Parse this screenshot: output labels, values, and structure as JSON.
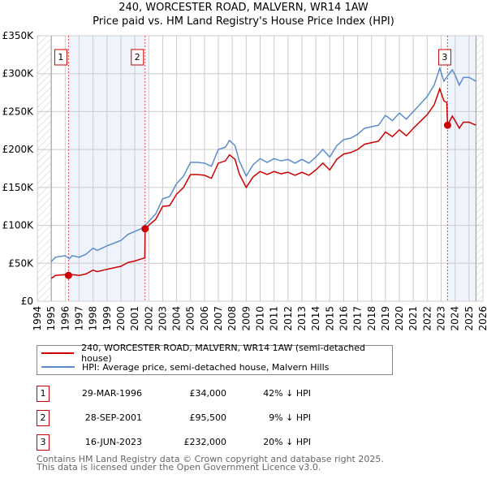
{
  "title": "240, WORCESTER ROAD, MALVERN, WR14 1AW",
  "subtitle": "Price paid vs. HM Land Registry's House Price Index (HPI)",
  "chart_data": {
    "type": "line",
    "xlim": [
      1994,
      2026
    ],
    "ylim": [
      0,
      350000
    ],
    "yticks": [
      {
        "v": 0,
        "label": "£0"
      },
      {
        "v": 50000,
        "label": "£50K"
      },
      {
        "v": 100000,
        "label": "£100K"
      },
      {
        "v": 150000,
        "label": "£150K"
      },
      {
        "v": 200000,
        "label": "£200K"
      },
      {
        "v": 250000,
        "label": "£250K"
      },
      {
        "v": 300000,
        "label": "£300K"
      },
      {
        "v": 350000,
        "label": "£350K"
      }
    ],
    "xticks": [
      "1994",
      "1995",
      "1996",
      "1997",
      "1998",
      "1999",
      "2000",
      "2001",
      "2002",
      "2003",
      "2004",
      "2005",
      "2006",
      "2007",
      "2008",
      "2009",
      "2010",
      "2011",
      "2012",
      "2013",
      "2014",
      "2015",
      "2016",
      "2017",
      "2018",
      "2019",
      "2020",
      "2021",
      "2022",
      "2023",
      "2024",
      "2025",
      "2026"
    ],
    "grid": true,
    "series": [
      {
        "name": "240, WORCESTER ROAD, MALVERN, WR14 1AW (semi-detached house)",
        "color": "#cc0000",
        "x": [
          1995.0,
          1995.3,
          1996,
          1996.24,
          1996.5,
          1997,
          1997.5,
          1998,
          1998.3,
          1999,
          2000,
          2000.5,
          2001,
          2001.5,
          2001.72,
          2001.74,
          2002,
          2002.5,
          2003,
          2003.5,
          2004,
          2004.5,
          2005,
          2005.5,
          2006,
          2006.5,
          2007,
          2007.5,
          2007.8,
          2008.2,
          2008.5,
          2009,
          2009.5,
          2010,
          2010.5,
          2011,
          2011.5,
          2012,
          2012.5,
          2013,
          2013.5,
          2014,
          2014.5,
          2015,
          2015.5,
          2016,
          2016.5,
          2017,
          2017.5,
          2018,
          2018.5,
          2019,
          2019.5,
          2020,
          2020.5,
          2021,
          2021.5,
          2022,
          2022.5,
          2022.9,
          2023.2,
          2023.4,
          2023.46,
          2023.8,
          2024,
          2024.3,
          2024.6,
          2025,
          2025.5
        ],
        "y": [
          30000,
          34000,
          35000,
          34000,
          35000,
          34000,
          36000,
          41000,
          39000,
          42000,
          46000,
          51000,
          53000,
          56000,
          57000,
          95500,
          100000,
          108000,
          125000,
          126000,
          141000,
          150000,
          167000,
          167000,
          166000,
          162000,
          182000,
          185000,
          193000,
          187000,
          168000,
          150000,
          164000,
          171000,
          167000,
          171000,
          168000,
          170000,
          166000,
          170000,
          166000,
          173000,
          182000,
          173000,
          187000,
          194000,
          196000,
          200000,
          207000,
          209000,
          211000,
          223000,
          217000,
          226000,
          218000,
          228000,
          237000,
          246000,
          259000,
          280000,
          264000,
          262000,
          232000,
          244000,
          238000,
          228000,
          236000,
          236000,
          232000
        ]
      },
      {
        "name": "HPI: Average price, semi-detached house, Malvern Hills",
        "color": "#5b8ccc",
        "x": [
          1995.0,
          1995.3,
          1996,
          1996.3,
          1996.5,
          1997,
          1997.5,
          1998,
          1998.3,
          1999,
          2000,
          2000.5,
          2001,
          2001.5,
          2002,
          2002.5,
          2003,
          2003.5,
          2004,
          2004.5,
          2005,
          2005.5,
          2006,
          2006.5,
          2007,
          2007.5,
          2007.8,
          2008.2,
          2008.5,
          2009,
          2009.5,
          2010,
          2010.5,
          2011,
          2011.5,
          2012,
          2012.5,
          2013,
          2013.5,
          2014,
          2014.5,
          2015,
          2015.5,
          2016,
          2016.5,
          2017,
          2017.5,
          2018,
          2018.5,
          2019,
          2019.5,
          2020,
          2020.5,
          2021,
          2021.5,
          2022,
          2022.5,
          2022.9,
          2023.2,
          2023.5,
          2023.8,
          2024,
          2024.3,
          2024.6,
          2025,
          2025.5
        ],
        "y": [
          52000,
          58000,
          60000,
          56000,
          60000,
          58000,
          62000,
          70000,
          67000,
          73000,
          80000,
          88000,
          92000,
          96000,
          105000,
          115000,
          135000,
          138000,
          155000,
          165000,
          183000,
          183000,
          182000,
          178000,
          200000,
          203000,
          212000,
          205000,
          185000,
          165000,
          180000,
          188000,
          183000,
          188000,
          185000,
          187000,
          182000,
          187000,
          182000,
          190000,
          200000,
          190000,
          205000,
          213000,
          215000,
          220000,
          228000,
          230000,
          232000,
          245000,
          238000,
          248000,
          240000,
          250000,
          260000,
          270000,
          285000,
          307000,
          290000,
          298000,
          305000,
          298000,
          285000,
          295000,
          295000,
          290000
        ]
      }
    ],
    "sales": [
      {
        "n": "1",
        "x": 1996.24,
        "date": "29-MAR-1996",
        "price": 34000,
        "price_label": "£34,000",
        "hpi": "42% ↓ HPI"
      },
      {
        "n": "2",
        "x": 2001.74,
        "date": "28-SEP-2001",
        "price": 95500,
        "price_label": "£95,500",
        "hpi": "9% ↓ HPI"
      },
      {
        "n": "3",
        "x": 2023.46,
        "date": "16-JUN-2023",
        "price": 232000,
        "price_label": "£232,000",
        "hpi": "20% ↓ HPI"
      }
    ],
    "shaded": [
      [
        1996.24,
        2001.74
      ],
      [
        2023.46,
        2025.5
      ]
    ],
    "data_range": [
      1995,
      2025.5
    ],
    "legend_placement": "below"
  },
  "footer": [
    "Contains HM Land Registry data © Crown copyright and database right 2025.",
    "This data is licensed under the Open Government Licence v3.0."
  ]
}
